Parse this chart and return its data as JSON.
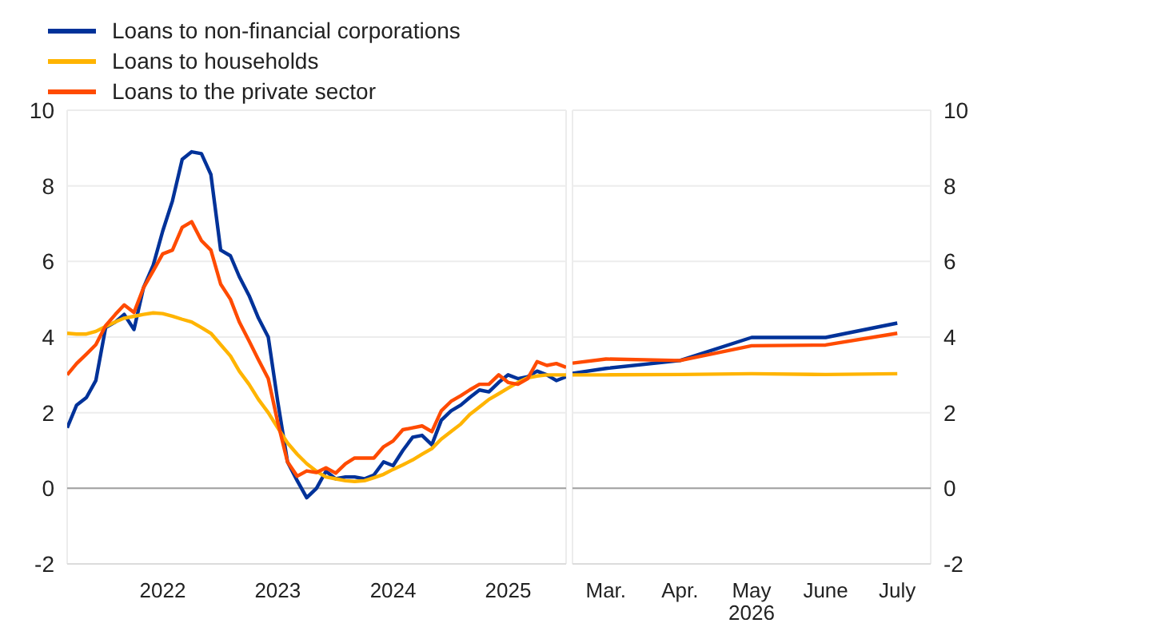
{
  "chart_data": [
    {
      "type": "line",
      "legend": "top left",
      "grid": "y",
      "marker": "none",
      "line_style": "solid",
      "x": [
        "2021-09",
        "2021-10",
        "2021-11",
        "2021-12",
        "2022-01",
        "2022-02",
        "2022-03",
        "2022-04",
        "2022-05",
        "2022-06",
        "2022-07",
        "2022-08",
        "2022-09",
        "2022-10",
        "2022-11",
        "2022-12",
        "2023-01",
        "2023-02",
        "2023-03",
        "2023-04",
        "2023-05",
        "2023-06",
        "2023-07",
        "2023-08",
        "2023-09",
        "2023-10",
        "2023-11",
        "2023-12",
        "2024-01",
        "2024-02",
        "2024-03",
        "2024-04",
        "2024-05",
        "2024-06",
        "2024-07",
        "2024-08",
        "2024-09",
        "2024-10",
        "2024-11",
        "2024-12",
        "2025-01",
        "2025-02",
        "2025-03",
        "2025-04",
        "2025-05",
        "2025-06",
        "2025-07",
        "2025-08",
        "2025-09",
        "2025-10",
        "2025-11",
        "2025-12",
        "2026-01"
      ],
      "xlim": [
        "2021-09",
        "2026-01"
      ],
      "xticks": [
        {
          "value": "2022-07",
          "label": "2022"
        },
        {
          "value": "2023-07",
          "label": "2023"
        },
        {
          "value": "2024-07",
          "label": "2024"
        },
        {
          "value": "2025-07",
          "label": "2025"
        }
      ],
      "ylim": [
        -2,
        10
      ],
      "yticks": [
        -2,
        0,
        2,
        4,
        6,
        8,
        10
      ],
      "ref_lines": [
        {
          "axis": "y",
          "value": 0,
          "color": "#a0a0a0"
        }
      ],
      "series": [
        {
          "name": "Loans to non-financial corporations",
          "color": "#003299",
          "values": [
            1.6,
            2.2,
            2.4,
            2.85,
            4.25,
            4.4,
            4.6,
            4.2,
            5.3,
            5.9,
            6.8,
            7.6,
            8.7,
            8.9,
            8.85,
            8.3,
            6.3,
            6.15,
            5.6,
            5.1,
            4.5,
            4.0,
            2.3,
            0.7,
            0.2,
            -0.25,
            0.0,
            0.45,
            0.25,
            0.3,
            0.3,
            0.25,
            0.35,
            0.7,
            0.6,
            1.0,
            1.35,
            1.4,
            1.15,
            1.8,
            2.05,
            2.2,
            2.4,
            2.6,
            2.55,
            2.8,
            3.0,
            2.9,
            2.95,
            3.1,
            3.0,
            2.85,
            2.95
          ]
        },
        {
          "name": "Loans to households",
          "color": "#ffb400",
          "values": [
            4.1,
            4.08,
            4.08,
            4.15,
            4.28,
            4.4,
            4.5,
            4.55,
            4.6,
            4.64,
            4.62,
            4.55,
            4.47,
            4.4,
            4.25,
            4.1,
            3.8,
            3.5,
            3.1,
            2.75,
            2.35,
            2.0,
            1.6,
            1.2,
            0.9,
            0.65,
            0.45,
            0.3,
            0.25,
            0.2,
            0.18,
            0.2,
            0.28,
            0.37,
            0.5,
            0.62,
            0.75,
            0.9,
            1.05,
            1.3,
            1.5,
            1.7,
            1.95,
            2.15,
            2.35,
            2.5,
            2.65,
            2.8,
            2.92,
            2.97,
            3.0,
            3.0,
            3.0
          ]
        },
        {
          "name": "Loans to the private sector",
          "color": "#ff4b00",
          "values": [
            3.0,
            3.3,
            3.55,
            3.8,
            4.3,
            4.6,
            4.85,
            4.65,
            5.3,
            5.75,
            6.2,
            6.3,
            6.9,
            7.05,
            6.55,
            6.3,
            5.4,
            5.0,
            4.4,
            3.9,
            3.4,
            2.9,
            1.75,
            0.7,
            0.32,
            0.46,
            0.42,
            0.54,
            0.4,
            0.65,
            0.8,
            0.8,
            0.8,
            1.1,
            1.25,
            1.55,
            1.6,
            1.65,
            1.5,
            2.05,
            2.3,
            2.45,
            2.6,
            2.75,
            2.75,
            3.0,
            2.8,
            2.75,
            2.9,
            3.35,
            3.25,
            3.3,
            3.2
          ]
        }
      ]
    },
    {
      "type": "line",
      "grid": "y",
      "marker": "none",
      "line_style": "solid",
      "xlabel": "2026",
      "x": [
        "2026-02-15",
        "2026-03",
        "2026-04",
        "2026-05",
        "2026-06",
        "2026-07"
      ],
      "xlim": [
        "2026-02-15",
        "2026-07-15"
      ],
      "xticks": [
        {
          "value": "2026-03",
          "label": "Mar."
        },
        {
          "value": "2026-04",
          "label": "Apr."
        },
        {
          "value": "2026-05",
          "label": "May"
        },
        {
          "value": "2026-06",
          "label": "June"
        },
        {
          "value": "2026-07",
          "label": "July"
        }
      ],
      "y2lim": [
        -2,
        10
      ],
      "y2ticks": [
        -2,
        0,
        2,
        4,
        6,
        8,
        10
      ],
      "ref_lines": [
        {
          "axis": "y2",
          "value": 0,
          "color": "#a0a0a0"
        }
      ],
      "series": [
        {
          "color": "#003299",
          "axis": "y2",
          "values": [
            3.04,
            3.17,
            3.38,
            3.99,
            3.99,
            4.37
          ]
        },
        {
          "color": "#ffb400",
          "axis": "y2",
          "values": [
            3.0,
            3.0,
            3.01,
            3.03,
            3.01,
            3.03
          ]
        },
        {
          "color": "#ff4b00",
          "axis": "y2",
          "values": [
            3.31,
            3.42,
            3.38,
            3.77,
            3.79,
            4.1
          ]
        }
      ]
    }
  ]
}
